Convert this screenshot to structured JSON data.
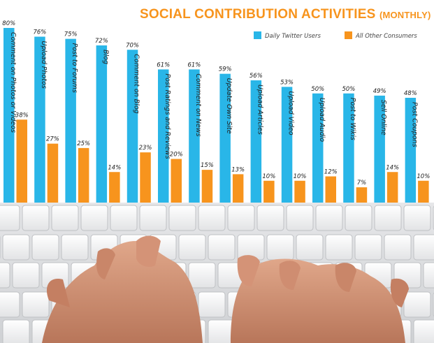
{
  "title": {
    "main": "SOCIAL CONTRIBUTION ACTIVITIES",
    "sub": "(MONTHLY)"
  },
  "colors": {
    "twitter": "#29b6e8",
    "other": "#f7941d",
    "title": "#f7941d"
  },
  "chart_data": {
    "type": "bar",
    "title": "SOCIAL CONTRIBUTION ACTIVITIES (MONTHLY)",
    "legend_position": "top-right",
    "grid": false,
    "categories": [
      "Comment on Photos or Videos",
      "Upload Photos",
      "Post to Forums",
      "Blog",
      "Comment on Blog",
      "Post Ratings and Reviews",
      "Comment on News",
      "Update Own Site",
      "Upload Articles",
      "Upload Video",
      "Upload Audio",
      "Post to Wikis",
      "Sell Online",
      "Post Coupons"
    ],
    "series": [
      {
        "name": "Daily Twitter Users",
        "values": [
          80,
          76,
          75,
          72,
          70,
          61,
          61,
          59,
          56,
          53,
          50,
          50,
          49,
          48
        ]
      },
      {
        "name": "All Other Consumers",
        "values": [
          38,
          27,
          25,
          14,
          23,
          20,
          15,
          13,
          10,
          10,
          12,
          7,
          14,
          10
        ]
      }
    ]
  }
}
